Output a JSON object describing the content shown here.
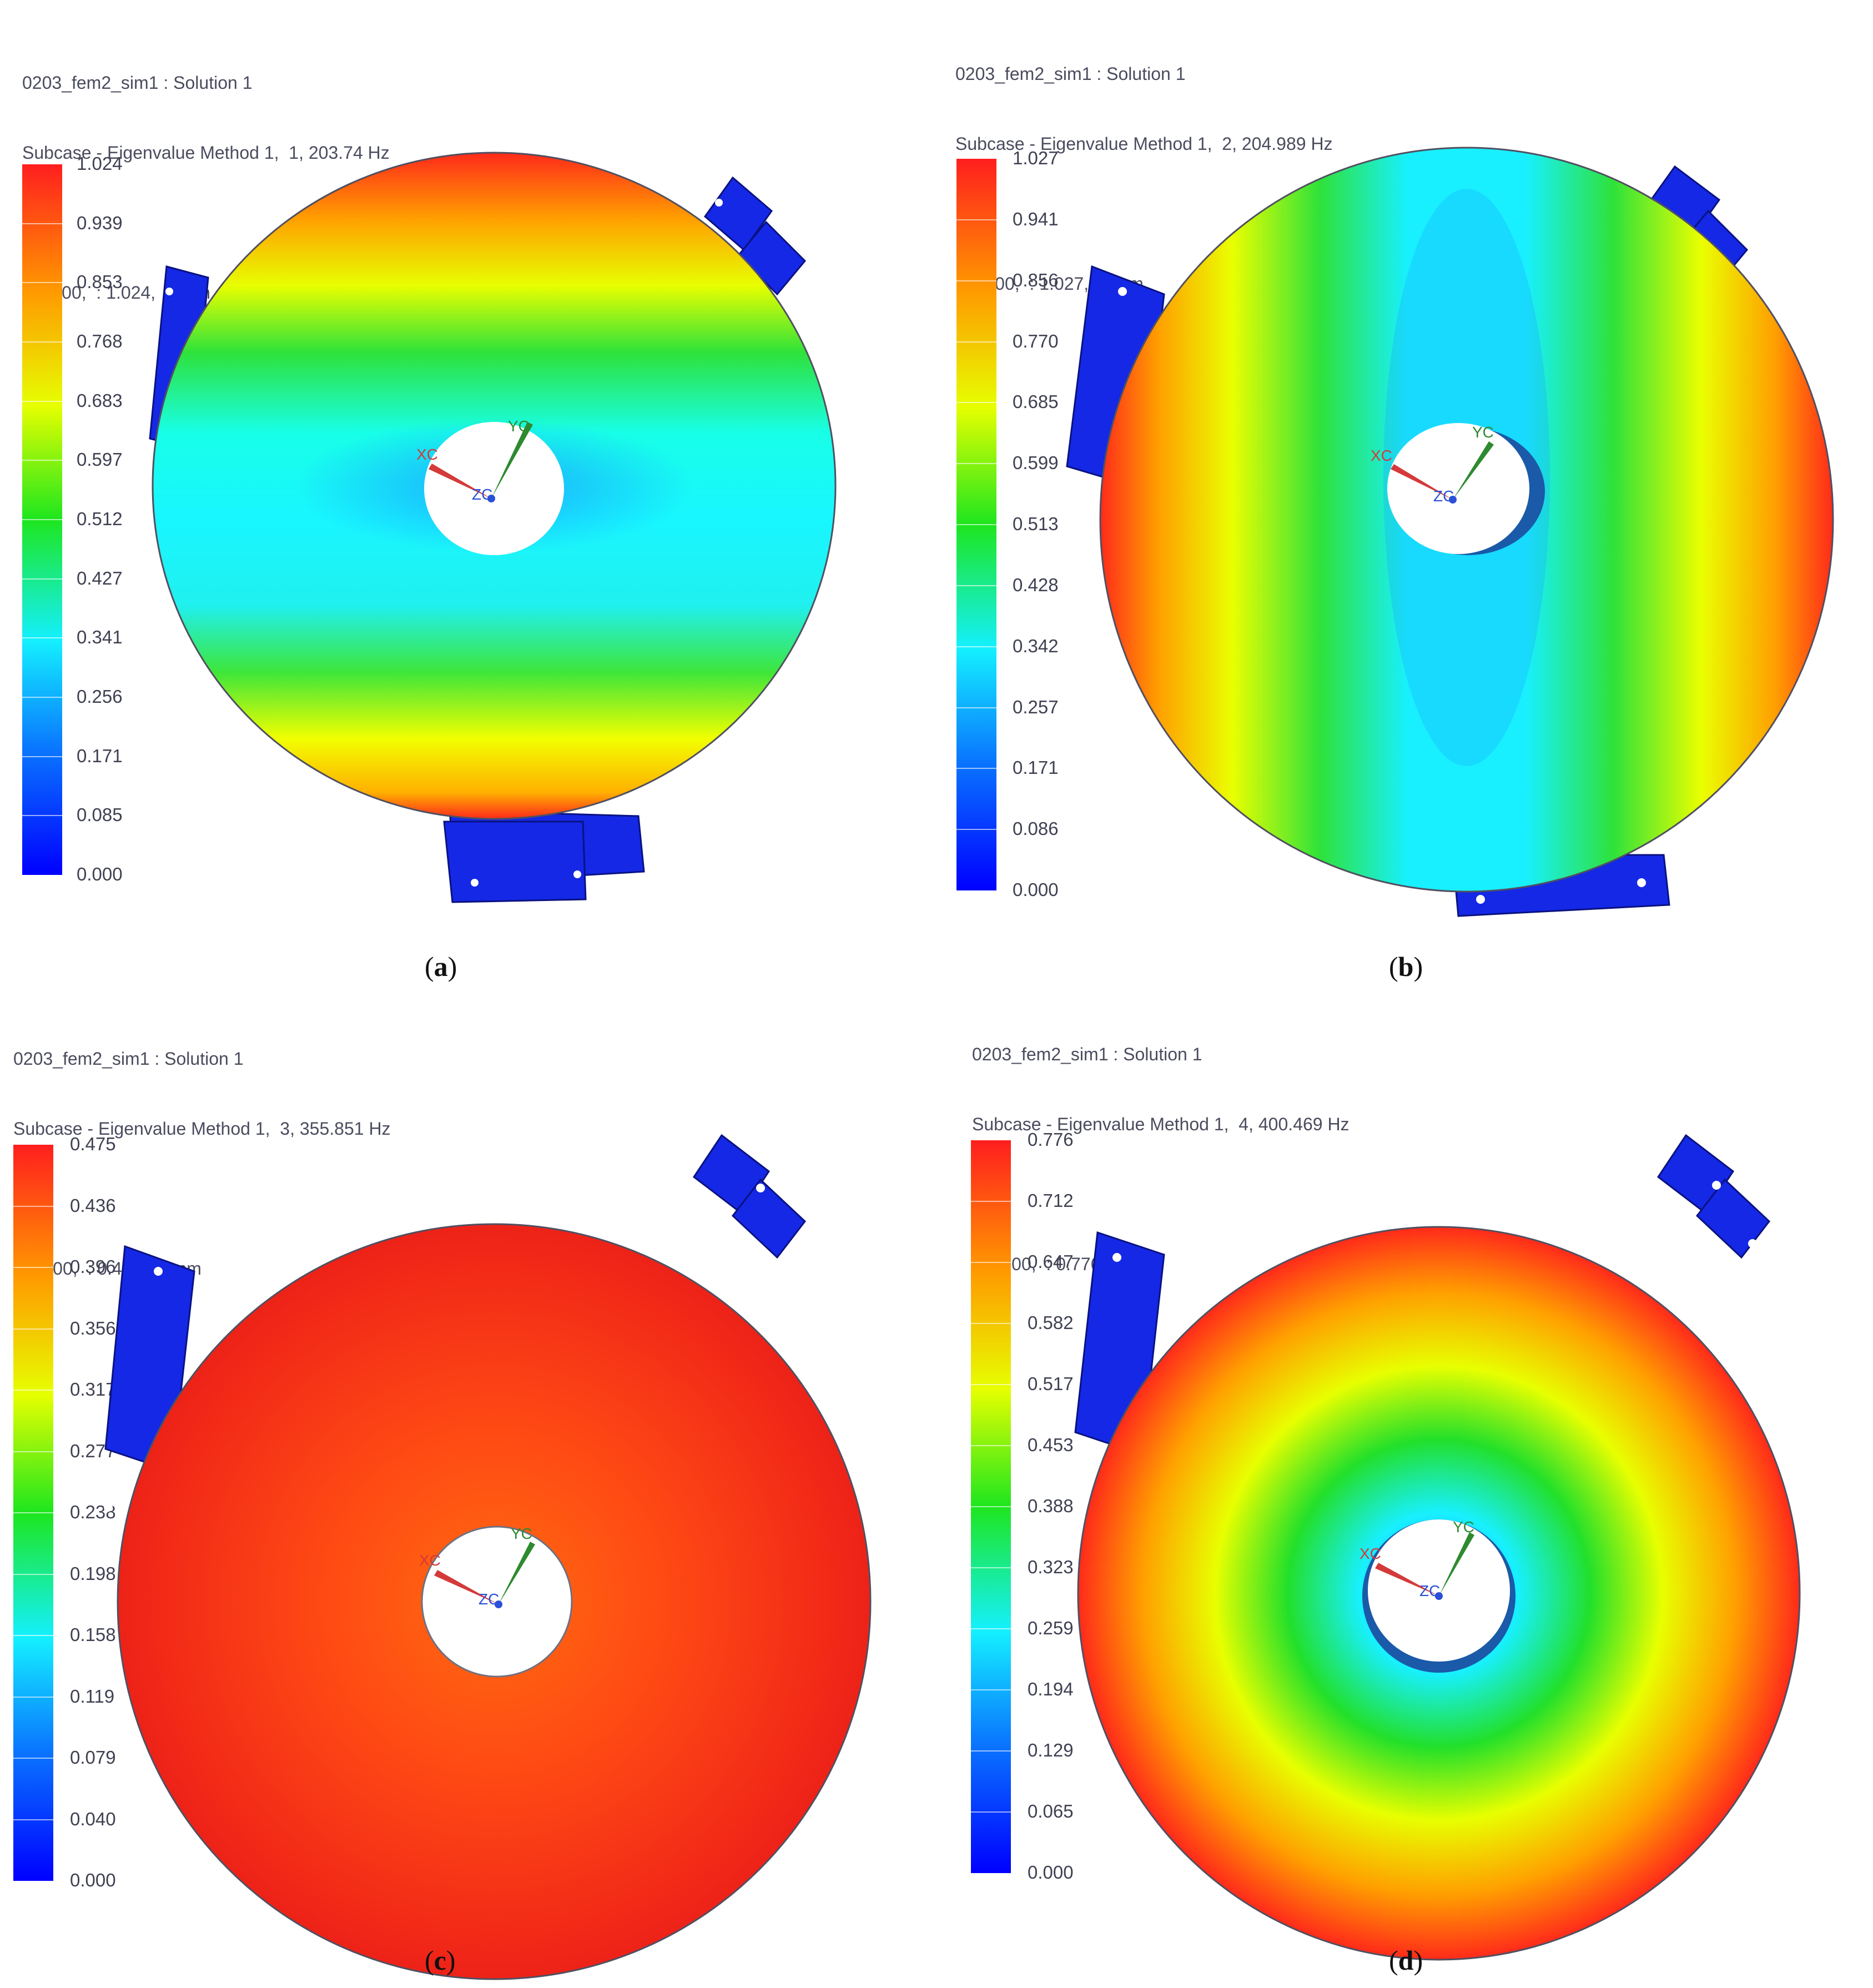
{
  "panels": [
    {
      "id": "a",
      "header": {
        "line1": "0203_fem2_sim1 : Solution 1",
        "line2": "Subcase - Eigenvalue Method 1,  1, 203.74 Hz",
        "line3": " - ,",
        "line4": " : 0.000,  : 1.024,  = mm",
        "line5": " :  -"
      },
      "legend": [
        "1.024",
        "0.939",
        "0.853",
        "0.768",
        "0.683",
        "0.597",
        "0.512",
        "0.427",
        "0.341",
        "0.256",
        "0.171",
        "0.085",
        "0.000"
      ],
      "caption": "a",
      "mode": {
        "number": 1,
        "frequency_hz": 203.74,
        "max_mm": 1.024
      }
    },
    {
      "id": "b",
      "header": {
        "line1": "0203_fem2_sim1 : Solution 1",
        "line2": "Subcase - Eigenvalue Method 1,  2, 204.989 Hz",
        "line3": " - ,",
        "line4": " : 0.000,  : 1.027,  = mm",
        "line5": " :  -"
      },
      "legend": [
        "1.027",
        "0.941",
        "0.856",
        "0.770",
        "0.685",
        "0.599",
        "0.513",
        "0.428",
        "0.342",
        "0.257",
        "0.171",
        "0.086",
        "0.000"
      ],
      "caption": "b",
      "mode": {
        "number": 2,
        "frequency_hz": 204.989,
        "max_mm": 1.027
      }
    },
    {
      "id": "c",
      "header": {
        "line1": "0203_fem2_sim1 : Solution 1",
        "line2": "Subcase - Eigenvalue Method 1,  3, 355.851 Hz",
        "line3": " - ,",
        "line4": " : 0.000,  : 0.475,  = mm",
        "line5": " :  -"
      },
      "legend": [
        "0.475",
        "0.436",
        "0.396",
        "0.356",
        "0.317",
        "0.277",
        "0.238",
        "0.198",
        "0.158",
        "0.119",
        "0.079",
        "0.040",
        "0.000"
      ],
      "caption": "c",
      "mode": {
        "number": 3,
        "frequency_hz": 355.851,
        "max_mm": 0.475
      }
    },
    {
      "id": "d",
      "header": {
        "line1": "0203_fem2_sim1 : Solution 1",
        "line2": "Subcase - Eigenvalue Method 1,  4, 400.469 Hz",
        "line3": " - ,",
        "line4": " : 0.000,  : 0.776,  = mm",
        "line5": " :  -"
      },
      "legend": [
        "0.776",
        "0.712",
        "0.647",
        "0.582",
        "0.517",
        "0.453",
        "0.388",
        "0.323",
        "0.259",
        "0.194",
        "0.129",
        "0.065",
        "0.000"
      ],
      "caption": "d",
      "mode": {
        "number": 4,
        "frequency_hz": 400.469,
        "max_mm": 0.776
      }
    }
  ],
  "triad": {
    "x": "XC",
    "y": "YC",
    "z": "ZC"
  },
  "colors": {
    "header_text": "#4a4c5e",
    "bracket": "#1428e6",
    "triad_x": "#d43a3a",
    "triad_y": "#2e8a2e",
    "triad_z": "#2a4fd8"
  }
}
